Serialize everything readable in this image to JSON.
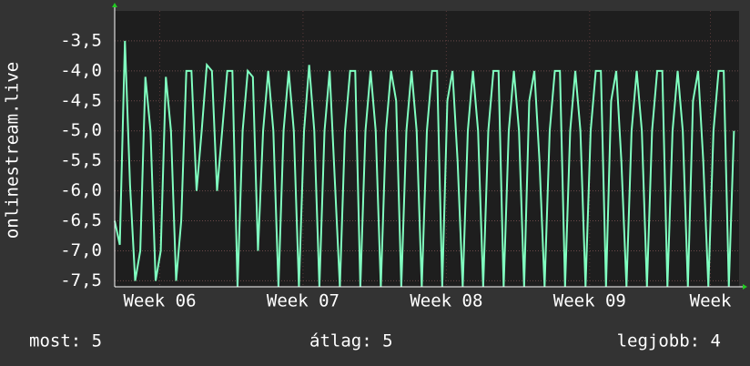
{
  "chart_data": {
    "type": "line",
    "y_label": "onlinestream.live",
    "x": [
      0,
      0.25,
      0.5,
      0.75,
      1,
      1.25,
      1.5,
      1.75,
      2,
      2.25,
      2.5,
      2.75,
      3,
      3.25,
      3.5,
      3.75,
      4,
      4.25,
      4.5,
      4.75,
      5,
      5.25,
      5.5,
      5.75,
      6,
      6.25,
      6.5,
      6.75,
      7,
      7.25,
      7.5,
      7.75,
      8,
      8.25,
      8.5,
      8.75,
      9,
      9.25,
      9.5,
      9.75,
      10,
      10.25,
      10.5,
      10.75,
      11,
      11.25,
      11.5,
      11.75,
      12,
      12.25,
      12.5,
      12.75,
      13,
      13.25,
      13.5,
      13.75,
      14,
      14.25,
      14.5,
      14.75,
      15,
      15.25,
      15.5,
      15.75,
      16,
      16.25,
      16.5,
      16.75,
      17,
      17.25,
      17.5,
      17.75,
      18,
      18.25,
      18.5,
      18.75,
      19,
      19.25,
      19.5,
      19.75,
      20,
      20.25,
      20.5,
      20.75,
      21,
      21.25,
      21.5,
      21.75,
      22,
      22.25,
      22.5,
      22.75,
      23,
      23.25,
      23.5,
      23.75,
      24,
      24.25,
      24.5,
      24.75,
      25,
      25.25,
      25.5,
      25.75,
      26,
      26.25,
      26.5,
      26.75,
      27,
      27.25,
      27.5,
      27.75,
      28,
      28.25,
      28.5,
      28.75,
      29,
      29.25,
      29.5,
      29.75,
      30,
      30.25
    ],
    "series": [
      {
        "color": "#80ffc0",
        "values": [
          -6.5,
          -6.9,
          -3.5,
          -5.9,
          -7.5,
          -7.0,
          -4.1,
          -5.0,
          -7.5,
          -7.0,
          -4.1,
          -5.0,
          -7.5,
          -6.5,
          -4.0,
          -4.0,
          -6.0,
          -5.0,
          -3.9,
          -4.0,
          -6.0,
          -5.0,
          -4.0,
          -4.0,
          -7.6,
          -5.0,
          -4.0,
          -4.1,
          -7.0,
          -5.0,
          -4.0,
          -5.0,
          -7.6,
          -5.0,
          -4.0,
          -5.0,
          -7.6,
          -5.0,
          -3.9,
          -5.0,
          -7.6,
          -5.0,
          -4.0,
          -5.8,
          -7.6,
          -5.0,
          -4.0,
          -4.0,
          -7.6,
          -5.0,
          -4.0,
          -5.0,
          -7.6,
          -5.0,
          -4.0,
          -4.5,
          -7.6,
          -5.0,
          -4.0,
          -5.0,
          -7.6,
          -5.0,
          -4.0,
          -4.0,
          -7.6,
          -4.5,
          -4.0,
          -5.5,
          -7.6,
          -5.0,
          -4.0,
          -5.0,
          -7.6,
          -5.0,
          -4.0,
          -4.0,
          -7.6,
          -5.0,
          -4.0,
          -5.0,
          -7.6,
          -4.5,
          -4.0,
          -5.5,
          -7.6,
          -5.0,
          -4.0,
          -4.0,
          -7.6,
          -5.0,
          -4.0,
          -5.0,
          -7.6,
          -5.0,
          -4.0,
          -4.0,
          -7.6,
          -4.5,
          -4.0,
          -5.5,
          -7.6,
          -5.0,
          -4.0,
          -5.0,
          -7.6,
          -5.0,
          -4.0,
          -4.0,
          -7.6,
          -5.0,
          -4.0,
          -5.0,
          -7.6,
          -4.5,
          -4.0,
          -5.5,
          -7.6,
          -5.0,
          -4.0,
          -4.0,
          -7.6,
          -5.0
        ]
      }
    ],
    "xlim": [
      0,
      30.5
    ],
    "xticks": [
      {
        "value": 2.2,
        "label": "Week 06"
      },
      {
        "value": 9.2,
        "label": "Week 07"
      },
      {
        "value": 16.2,
        "label": "Week 08"
      },
      {
        "value": 23.2,
        "label": "Week 09"
      },
      {
        "value": 29.1,
        "label": "Week"
      }
    ],
    "ylim": [
      -7.6,
      -3.0
    ],
    "yticks": [
      {
        "value": -7.5,
        "label": "-7,5"
      },
      {
        "value": -7.0,
        "label": "-7,0"
      },
      {
        "value": -6.5,
        "label": "-6,5"
      },
      {
        "value": -6.0,
        "label": "-6,0"
      },
      {
        "value": -5.5,
        "label": "-5,5"
      },
      {
        "value": -5.0,
        "label": "-5,0"
      },
      {
        "value": -4.5,
        "label": "-4,5"
      },
      {
        "value": -4.0,
        "label": "-4,0"
      },
      {
        "value": -3.5,
        "label": "-3,5"
      }
    ],
    "grid": true,
    "footer": [
      "most: 5",
      "átlag: 5",
      "legjobb: 4"
    ]
  }
}
